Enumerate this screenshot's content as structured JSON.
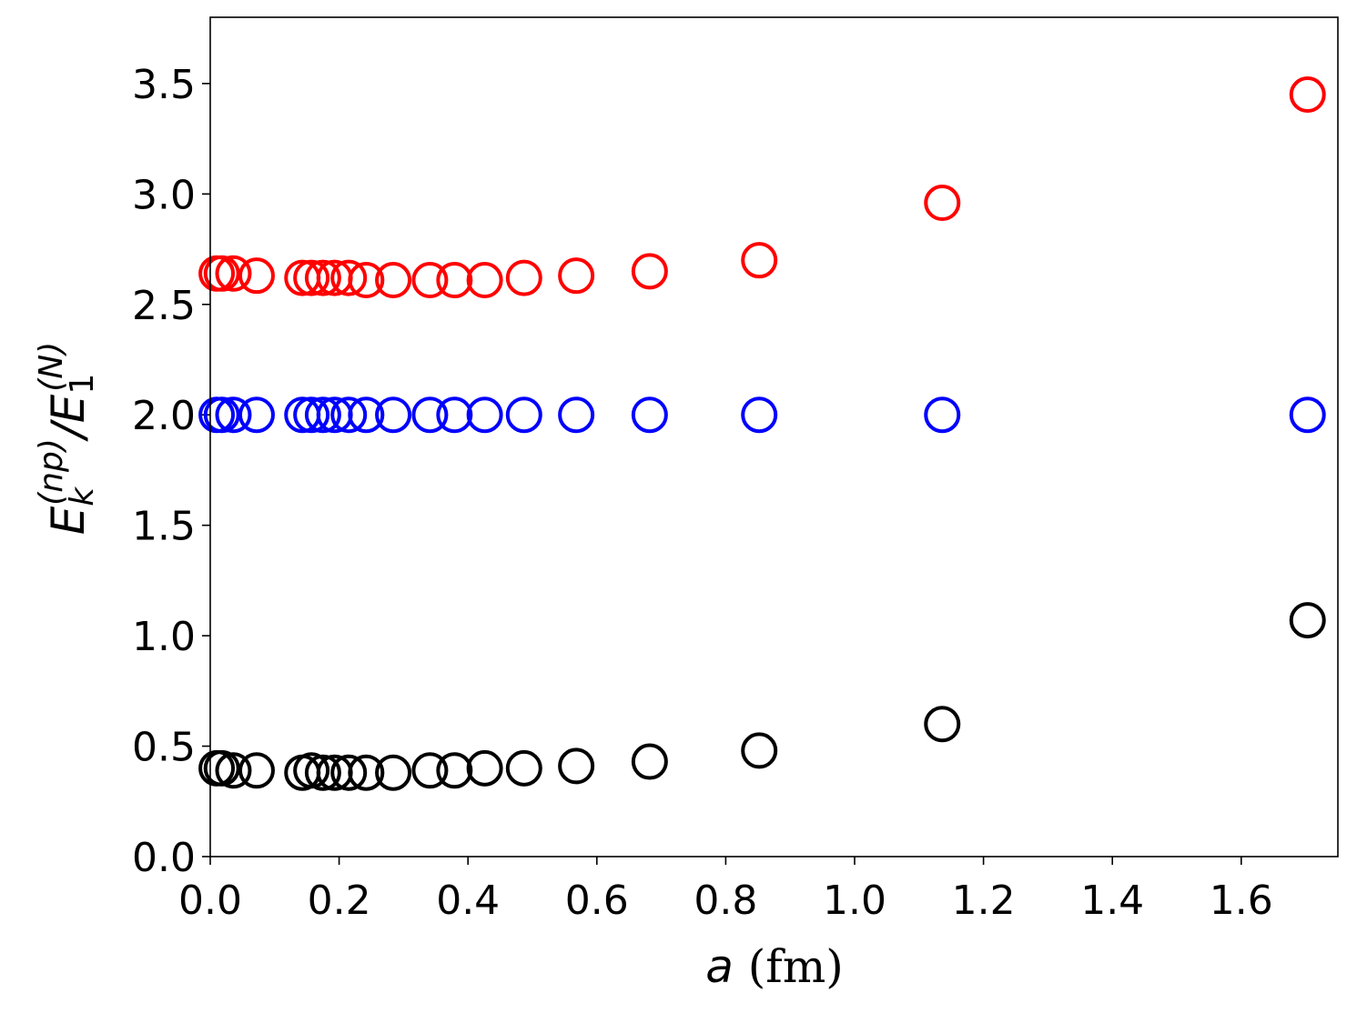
{
  "chart_data": {
    "type": "scatter",
    "xlabel_var": "a",
    "xlabel_unit": " (fm)",
    "ylabel": {
      "E": "E",
      "k": "k",
      "np": "(np)",
      "slash": "/",
      "E1": "E",
      "one": "1",
      "N": "(N)"
    },
    "xlim": [
      0.0,
      1.75
    ],
    "ylim": [
      0.0,
      3.8
    ],
    "x_ticks": [
      0.0,
      0.2,
      0.4,
      0.6,
      0.8,
      1.0,
      1.2,
      1.4,
      1.6
    ],
    "x_tick_labels": [
      "0.0",
      "0.2",
      "0.4",
      "0.6",
      "0.8",
      "1.0",
      "1.2",
      "1.4",
      "1.6"
    ],
    "y_ticks": [
      0.0,
      0.5,
      1.0,
      1.5,
      2.0,
      2.5,
      3.0,
      3.5
    ],
    "y_tick_labels": [
      "0.0",
      "0.5",
      "1.0",
      "1.5",
      "2.0",
      "2.5",
      "3.0",
      "3.5"
    ],
    "grid": false,
    "marker": "open-circle",
    "series": [
      {
        "color": "#000000",
        "points": [
          [
            0.01,
            0.4
          ],
          [
            0.018,
            0.4
          ],
          [
            0.036,
            0.39
          ],
          [
            0.072,
            0.39
          ],
          [
            0.143,
            0.38
          ],
          [
            0.157,
            0.39
          ],
          [
            0.175,
            0.38
          ],
          [
            0.193,
            0.38
          ],
          [
            0.215,
            0.38
          ],
          [
            0.242,
            0.38
          ],
          [
            0.284,
            0.38
          ],
          [
            0.341,
            0.39
          ],
          [
            0.379,
            0.39
          ],
          [
            0.426,
            0.4
          ],
          [
            0.487,
            0.4
          ],
          [
            0.568,
            0.41
          ],
          [
            0.682,
            0.43
          ],
          [
            0.852,
            0.48
          ],
          [
            1.136,
            0.6
          ],
          [
            1.703,
            1.07
          ]
        ]
      },
      {
        "color": "#0000ff",
        "points": [
          [
            0.01,
            2.0
          ],
          [
            0.018,
            2.0
          ],
          [
            0.036,
            2.0
          ],
          [
            0.072,
            2.0
          ],
          [
            0.143,
            2.0
          ],
          [
            0.157,
            2.0
          ],
          [
            0.175,
            2.0
          ],
          [
            0.193,
            2.0
          ],
          [
            0.215,
            2.0
          ],
          [
            0.242,
            2.0
          ],
          [
            0.284,
            2.0
          ],
          [
            0.341,
            2.0
          ],
          [
            0.379,
            2.0
          ],
          [
            0.426,
            2.0
          ],
          [
            0.487,
            2.0
          ],
          [
            0.568,
            2.0
          ],
          [
            0.682,
            2.0
          ],
          [
            0.852,
            2.0
          ],
          [
            1.136,
            2.0
          ],
          [
            1.703,
            2.0
          ]
        ]
      },
      {
        "color": "#ff0000",
        "points": [
          [
            0.01,
            2.64
          ],
          [
            0.018,
            2.64
          ],
          [
            0.036,
            2.64
          ],
          [
            0.072,
            2.63
          ],
          [
            0.143,
            2.62
          ],
          [
            0.157,
            2.62
          ],
          [
            0.175,
            2.62
          ],
          [
            0.193,
            2.62
          ],
          [
            0.215,
            2.62
          ],
          [
            0.242,
            2.61
          ],
          [
            0.284,
            2.61
          ],
          [
            0.341,
            2.61
          ],
          [
            0.379,
            2.61
          ],
          [
            0.426,
            2.61
          ],
          [
            0.487,
            2.62
          ],
          [
            0.568,
            2.63
          ],
          [
            0.682,
            2.65
          ],
          [
            0.852,
            2.7
          ],
          [
            1.136,
            2.96
          ],
          [
            1.703,
            3.45
          ]
        ]
      }
    ]
  }
}
